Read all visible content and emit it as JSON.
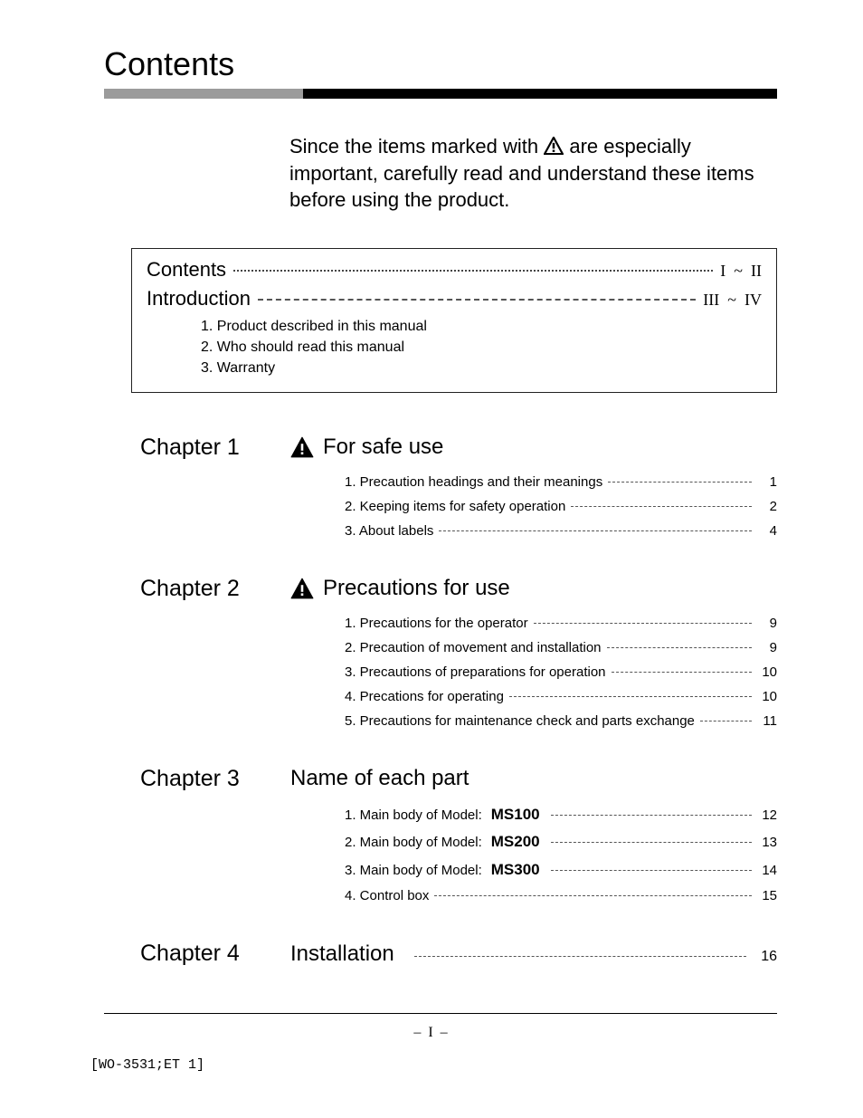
{
  "title": "Contents",
  "intro": {
    "pre": "Since the items marked with",
    "post": "are especially important, carefully read and understand these items before using the product."
  },
  "top_box": {
    "rows": [
      {
        "label": "Contents",
        "pages": "I  ~  II"
      },
      {
        "label": "Introduction",
        "pages": "III  ~  IV"
      }
    ],
    "sublist": [
      "1. Product described in this manual",
      "2. Who should read this manual",
      "3. Warranty"
    ]
  },
  "chapters": [
    {
      "label": "Chapter 1",
      "warning": true,
      "title": "For safe use",
      "entries": [
        {
          "text": "1. Precaution headings and their meanings",
          "page": "1"
        },
        {
          "text": "2. Keeping items for safety operation",
          "page": "2"
        },
        {
          "text": "3. About labels",
          "page": "4"
        }
      ]
    },
    {
      "label": "Chapter 2",
      "warning": true,
      "title": "Precautions for use",
      "entries": [
        {
          "text": "1. Precautions for the operator",
          "page": "9"
        },
        {
          "text": "2. Precaution of movement and installation",
          "page": "9"
        },
        {
          "text": "3. Precautions of preparations for operation",
          "page": "10"
        },
        {
          "text": "4. Precations for operating",
          "page": "10"
        },
        {
          "text": "5. Precautions for maintenance check and parts exchange",
          "page": "11"
        }
      ]
    },
    {
      "label": "Chapter 3",
      "warning": false,
      "title": "Name of each part",
      "entries": [
        {
          "text": "1. Main body of Model:",
          "model": "MS100",
          "page": "12"
        },
        {
          "text": "2. Main body of Model:",
          "model": "MS200",
          "page": "13"
        },
        {
          "text": "3. Main body of Model:",
          "model": "MS300",
          "page": "14"
        },
        {
          "text": "4. Control box",
          "page": "15"
        }
      ]
    }
  ],
  "chapter4": {
    "label": "Chapter 4",
    "title": "Installation",
    "page": "16"
  },
  "footer": {
    "page_num": "–  I  –",
    "docref": "[WO-3531;ET 1]"
  },
  "colors": {
    "hr_gray": "#9b9b9b",
    "hr_black": "#000000",
    "text": "#000000",
    "background": "#ffffff"
  }
}
